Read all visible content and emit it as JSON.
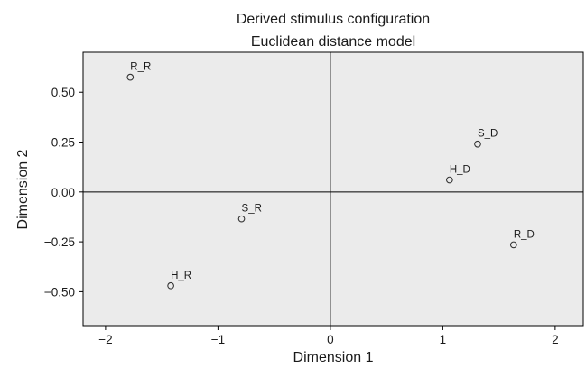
{
  "chart_data": {
    "type": "scatter",
    "title": "Derived stimulus configuration",
    "subtitle": "Euclidean distance model",
    "xlabel": "Dimension 1",
    "ylabel": "Dimension 2",
    "xlim": [
      -2.2,
      2.25
    ],
    "ylim": [
      -0.67,
      0.7
    ],
    "xticks": [
      -2,
      -1,
      0,
      1,
      2
    ],
    "xtick_labels": [
      "−2",
      "−1",
      "0",
      "1",
      "2"
    ],
    "yticks": [
      0.5,
      0.25,
      0.0,
      -0.25,
      -0.5
    ],
    "ytick_labels": [
      "0.50",
      "0.25",
      "0.00",
      "−0.25",
      "−0.50"
    ],
    "reference_lines": {
      "x": 0,
      "y": 0
    },
    "grid": false,
    "plot_background": "#ebebeb",
    "marker_color": "#333333",
    "points": [
      {
        "label": "R_R",
        "x": -1.78,
        "y": 0.575
      },
      {
        "label": "S_D",
        "x": 1.31,
        "y": 0.24
      },
      {
        "label": "H_D",
        "x": 1.06,
        "y": 0.06
      },
      {
        "label": "S_R",
        "x": -0.79,
        "y": -0.135
      },
      {
        "label": "R_D",
        "x": 1.63,
        "y": -0.265
      },
      {
        "label": "H_R",
        "x": -1.42,
        "y": -0.47
      }
    ]
  }
}
